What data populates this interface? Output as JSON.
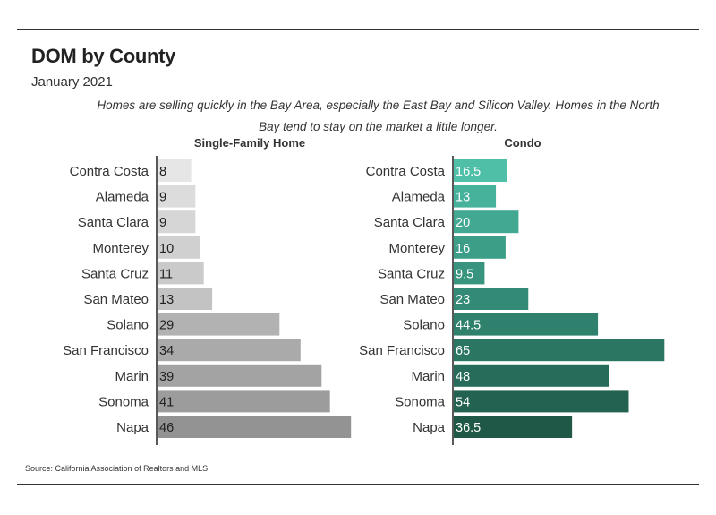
{
  "header": {
    "title": "DOM by County",
    "subtitle": "January 2021",
    "description": "Homes are selling quickly in the Bay Area, especially the East Bay and Silicon Valley. Homes in the North Bay tend to stay on the market a little longer."
  },
  "footer": {
    "source": "Source:  California Association of Realtors and MLS"
  },
  "chart_data": [
    {
      "type": "bar",
      "orientation": "horizontal",
      "title": "Single-Family Home",
      "categories": [
        "Contra Costa",
        "Alameda",
        "Santa Clara",
        "Monterey",
        "Santa Cruz",
        "San Mateo",
        "Solano",
        "San Francisco",
        "Marin",
        "Sonoma",
        "Napa"
      ],
      "values": [
        8,
        9,
        9,
        10,
        11,
        13,
        29,
        34,
        39,
        41,
        46
      ],
      "colors": [
        "#e6e6e6",
        "#dcdcdc",
        "#d6d6d6",
        "#d0d0d0",
        "#cacaca",
        "#c3c3c3",
        "#b2b2b2",
        "#aaaaaa",
        "#a3a3a3",
        "#9c9c9c",
        "#939393"
      ],
      "grid": false,
      "legend": "none"
    },
    {
      "type": "bar",
      "orientation": "horizontal",
      "title": "Condo",
      "categories": [
        "Contra Costa",
        "Alameda",
        "Santa Clara",
        "Monterey",
        "Santa Cruz",
        "San Mateo",
        "Solano",
        "San Francisco",
        "Marin",
        "Sonoma",
        "Napa"
      ],
      "values": [
        16.5,
        13,
        20,
        16,
        9.5,
        23,
        44.5,
        65,
        48,
        54,
        36.5
      ],
      "colors": [
        "#4fbfa8",
        "#47b29c",
        "#42a892",
        "#3d9e88",
        "#38947f",
        "#338a76",
        "#2f806c",
        "#2b7663",
        "#276c5a",
        "#236251",
        "#1f5846"
      ],
      "grid": false,
      "legend": "none"
    }
  ]
}
